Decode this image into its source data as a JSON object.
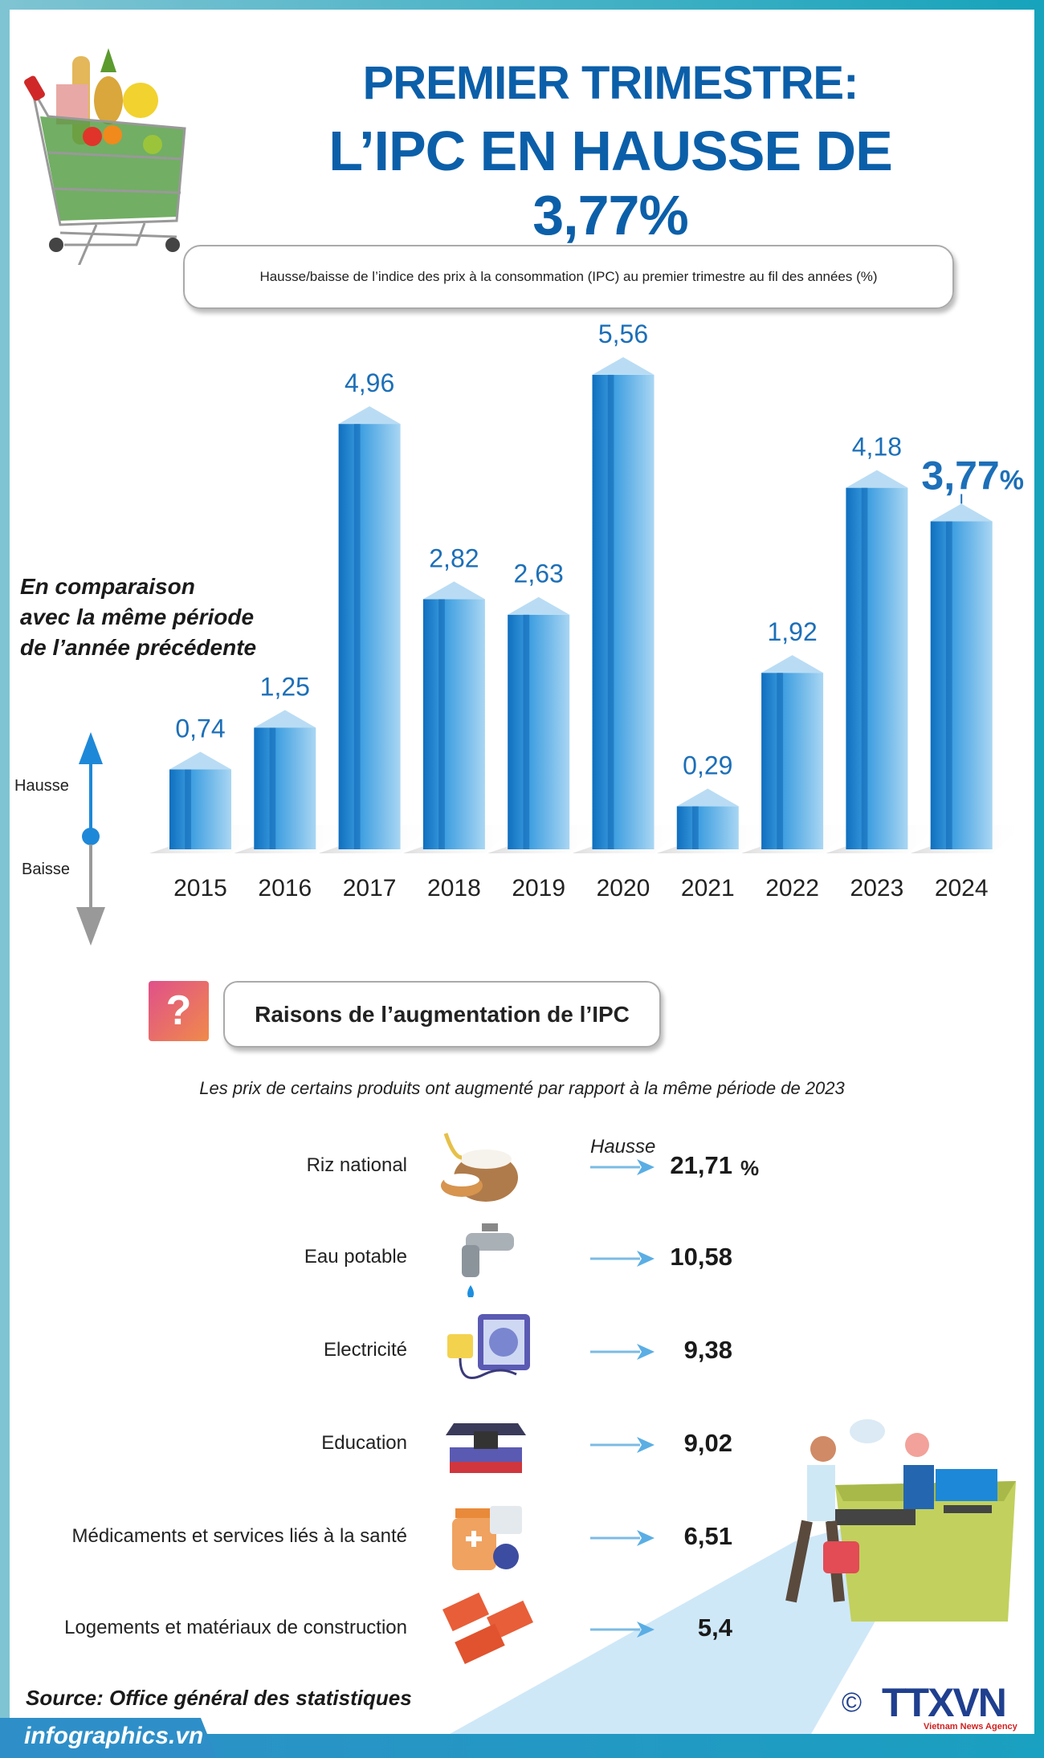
{
  "header": {
    "title_line1": "PREMIER TRIMESTRE:",
    "title_line2": "L’IPC EN HAUSSE DE 3,77%"
  },
  "chart_data": {
    "type": "bar",
    "title": "Hausse/baisse de l’indice des prix à la consommation (IPC) au premier trimestre au fil des années (%)",
    "categories": [
      "2015",
      "2016",
      "2017",
      "2018",
      "2019",
      "2020",
      "2021",
      "2022",
      "2023",
      "2024"
    ],
    "values": [
      0.74,
      1.25,
      4.96,
      2.82,
      2.63,
      5.56,
      0.29,
      1.92,
      4.18,
      3.77
    ],
    "value_labels": [
      "0,74",
      "1,25",
      "4,96",
      "2,82",
      "2,63",
      "5,56",
      "0,29",
      "1,92",
      "4,18",
      "3,77"
    ],
    "highlight_suffix": "%",
    "annotation": "En comparaison avec la même période de l’année précédente",
    "axis_up_label": "Hausse",
    "axis_down_label": "Baisse",
    "grid": false,
    "colors": {
      "bar_front": "#1e7fc8",
      "bar_side": "#8fc6ea",
      "label": "#1c6fb8"
    }
  },
  "annotation_lines": [
    "En comparaison",
    "avec la même période",
    "de l’année précédente"
  ],
  "reasons": {
    "heading": "Raisons de l’augmentation de l’IPC",
    "subtitle": "Les prix de certains produits ont augmenté par rapport à la même période de 2023",
    "column_label": "Hausse",
    "unit": "%",
    "items": [
      {
        "label": "Riz national",
        "value": "21,71",
        "icon": "rice-sack-icon"
      },
      {
        "label": "Eau potable",
        "value": "10,58",
        "icon": "water-tap-icon"
      },
      {
        "label": "Electricité",
        "value": "9,38",
        "icon": "electric-plug-icon"
      },
      {
        "label": "Education",
        "value": "9,02",
        "icon": "graduation-books-icon"
      },
      {
        "label": "Médicaments et services liés à la santé",
        "value": "6,51",
        "icon": "medicine-icon"
      },
      {
        "label": "Logements et matériaux de construction",
        "value": "5,4",
        "icon": "bricks-icon"
      }
    ]
  },
  "footer": {
    "source": "Source: Office général des statistiques",
    "site": "infographics.vn",
    "copyright": "©",
    "logo": "TTXVN",
    "logo_sub": "Vietnam News Agency"
  }
}
